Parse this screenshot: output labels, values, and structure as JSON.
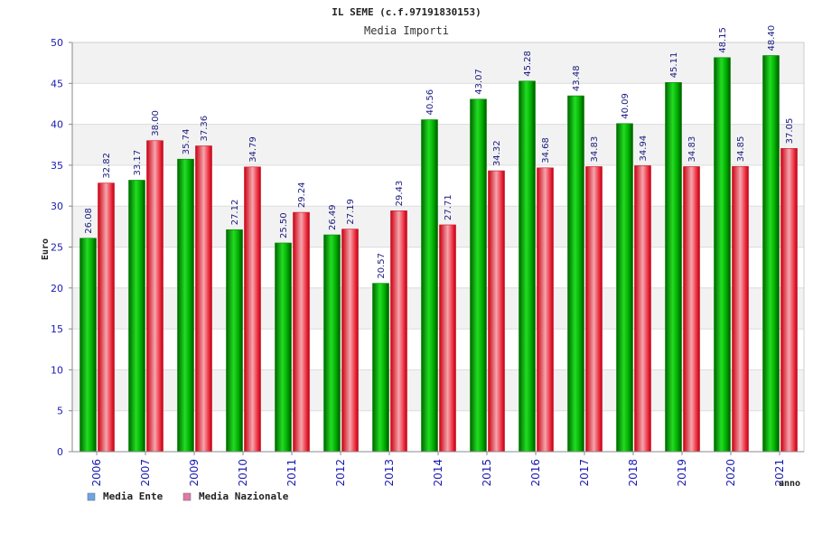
{
  "chart_data": {
    "type": "bar",
    "title": "IL SEME (c.f.97191830153)",
    "subtitle": "Media Importi",
    "ylabel": "Euro",
    "xlabel": "anno",
    "ylim": [
      0,
      50
    ],
    "yticks": [
      0,
      5,
      10,
      15,
      20,
      25,
      30,
      35,
      40,
      45,
      50
    ],
    "grid": true,
    "legend": "bottom-left",
    "categories": [
      "2006",
      "2007",
      "2009",
      "2010",
      "2011",
      "2012",
      "2013",
      "2014",
      "2015",
      "2016",
      "2017",
      "2018",
      "2019",
      "2020",
      "2021"
    ],
    "series": [
      {
        "name": "Media Ente",
        "color": "#00bb00",
        "legend_color": "#6aa6e8",
        "values": [
          26.08,
          33.17,
          35.74,
          27.12,
          25.5,
          26.49,
          20.57,
          40.56,
          43.07,
          45.28,
          43.48,
          40.09,
          45.11,
          48.15,
          48.4
        ],
        "labels": [
          "26.08",
          "33.17",
          "35.74",
          "27.12",
          "25.50",
          "26.49",
          "20.57",
          "40.56",
          "43.07",
          "45.28",
          "43.48",
          "40.09",
          "45.11",
          "48.15",
          "48.40"
        ]
      },
      {
        "name": "Media Nazionale",
        "color": "#ee2233",
        "legend_color": "#e07aa8",
        "values": [
          32.82,
          38.0,
          37.36,
          34.79,
          29.24,
          27.19,
          29.43,
          27.71,
          34.32,
          34.68,
          34.83,
          34.94,
          34.83,
          34.85,
          37.05
        ],
        "labels": [
          "32.82",
          "38.00",
          "37.36",
          "34.79",
          "29.24",
          "27.19",
          "29.43",
          "27.71",
          "34.32",
          "34.68",
          "34.83",
          "34.94",
          "34.83",
          "34.85",
          "37.05"
        ]
      }
    ]
  }
}
